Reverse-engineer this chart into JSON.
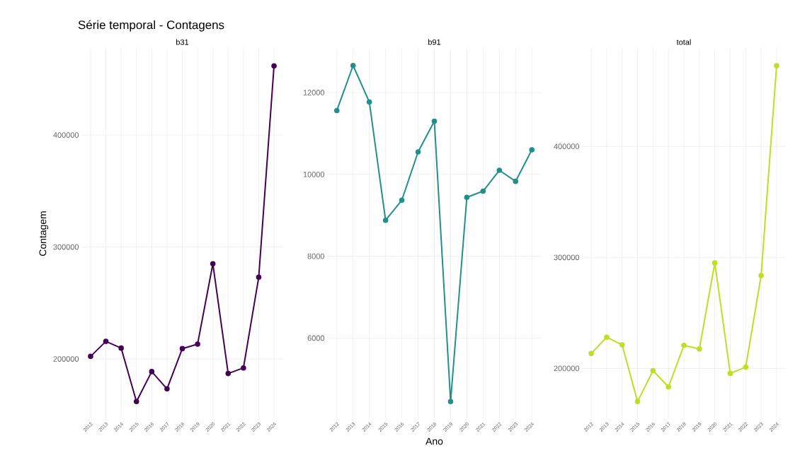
{
  "chart_data": [
    {
      "type": "line",
      "title": "b31",
      "ylabel": "Contagem",
      "annotations": [
        "Série temporal - Contagens"
      ],
      "categories": [
        "2012",
        "2013",
        "2014",
        "2015",
        "2016",
        "2017",
        "2018",
        "2019",
        "2020",
        "2021",
        "2022",
        "2023",
        "2024"
      ],
      "values": [
        202300,
        215700,
        209700,
        162000,
        188700,
        173300,
        209200,
        213300,
        285000,
        187000,
        192000,
        273000,
        461700
      ],
      "color": "#440154",
      "ylim": [
        147000,
        477000
      ],
      "yticks": [
        200000,
        300000,
        400000
      ],
      "grid": true,
      "marker": "circle"
    },
    {
      "type": "line",
      "title": "b91",
      "xlabel": "Ano",
      "categories": [
        "2012",
        "2013",
        "2014",
        "2015",
        "2016",
        "2017",
        "2018",
        "2019",
        "2020",
        "2021",
        "2022",
        "2023",
        "2024"
      ],
      "values": [
        11560,
        12660,
        11770,
        8880,
        9370,
        10550,
        11300,
        4450,
        9440,
        9590,
        10100,
        9830,
        10600
      ],
      "color": "#21908c",
      "ylim": [
        4040,
        13070
      ],
      "yticks": [
        6000,
        8000,
        10000,
        12000
      ],
      "grid": true,
      "marker": "circle"
    },
    {
      "type": "line",
      "title": "total",
      "categories": [
        "2012",
        "2013",
        "2014",
        "2015",
        "2016",
        "2017",
        "2018",
        "2019",
        "2020",
        "2021",
        "2022",
        "2023",
        "2024"
      ],
      "values": [
        213400,
        228100,
        221200,
        170200,
        198000,
        183300,
        220700,
        217500,
        295100,
        195500,
        201100,
        283600,
        472700
      ],
      "color": "#bddf26",
      "ylim": [
        155000,
        488000
      ],
      "yticks": [
        200000,
        300000,
        400000
      ],
      "grid": true,
      "marker": "circle"
    }
  ]
}
